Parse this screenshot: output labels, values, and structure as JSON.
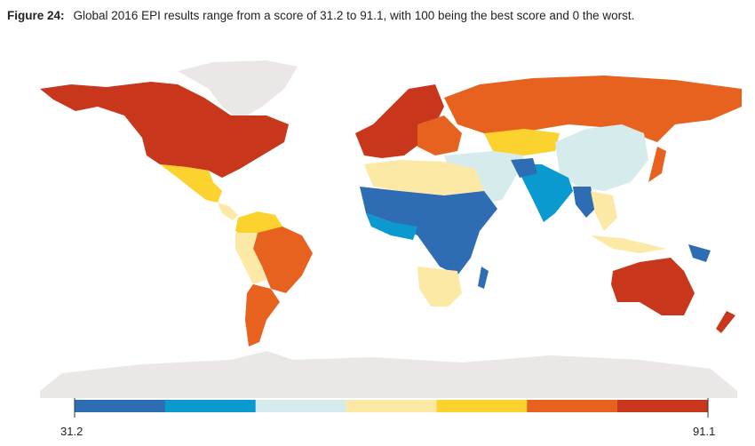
{
  "caption": {
    "figure_label": "Figure 24:",
    "text": "Global 2016 EPI results range from a score of 31.2 to 91.1, with 100 being the best score and 0 the worst."
  },
  "legend": {
    "min_label": "31.2",
    "max_label": "91.1",
    "min": 31.2,
    "max": 91.1,
    "colors": [
      "#2e6db4",
      "#0a9ad0",
      "#d6ebec",
      "#fde9a6",
      "#fbd22e",
      "#e8621f",
      "#c8361b"
    ]
  },
  "colors": {
    "no_data": "#ebe7e7",
    "background": "#ffffff"
  }
}
